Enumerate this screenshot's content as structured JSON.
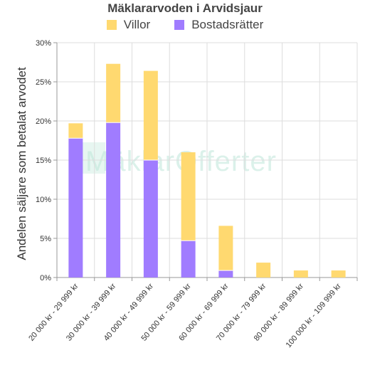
{
  "chart_data": {
    "type": "bar",
    "stacked": true,
    "title": "Mäklararvoden i Arvidsjaur",
    "ylabel": "Andelen säljare som betalat arvodet",
    "ylim": [
      0,
      30
    ],
    "yticks": [
      "0%",
      "5%",
      "10%",
      "15%",
      "20%",
      "25%",
      "30%"
    ],
    "grid": true,
    "legend": "top",
    "categories": [
      "20 000 kr - 29 999 kr",
      "30 000 kr - 39 999 kr",
      "40 000 kr - 49 999 kr",
      "50 000 kr - 59 999 kr",
      "60 000 kr - 69 999 kr",
      "70 000 kr - 79 999 kr",
      "80 000 kr - 89 999 kr",
      "100 000 kr - 109 999 kr"
    ],
    "series": [
      {
        "name": "Bostadsrätter",
        "color": "#a07cff",
        "values": [
          17.8,
          19.8,
          15.0,
          4.7,
          0.9,
          0,
          0,
          0
        ]
      },
      {
        "name": "Villor",
        "color": "#ffd970",
        "values": [
          1.9,
          7.5,
          11.4,
          11.3,
          5.7,
          1.9,
          0.9,
          0.9
        ]
      }
    ]
  },
  "watermark": "MäklarOfferter"
}
